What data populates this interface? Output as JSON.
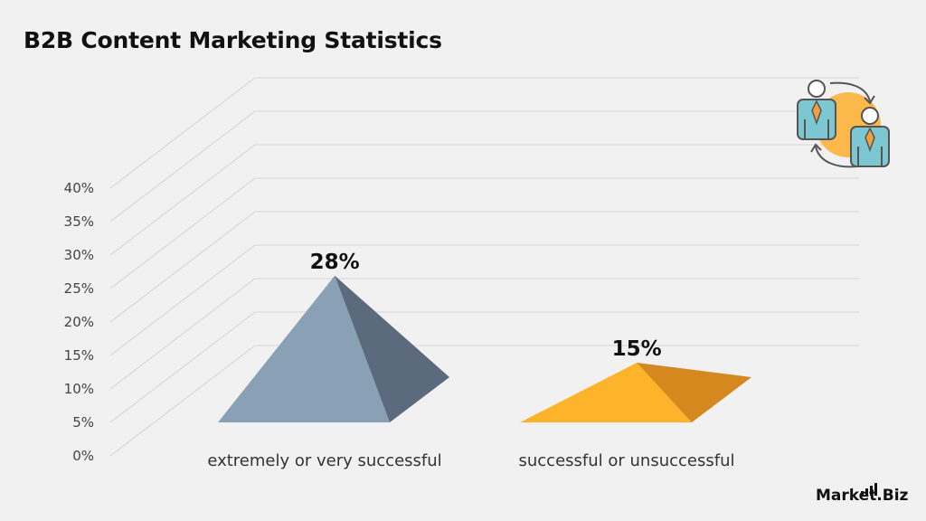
{
  "chart_data": {
    "type": "bar",
    "title": "B2B Content Marketing Statistics",
    "categories": [
      "extremely or very successful",
      "successful or unsuccessful"
    ],
    "values": [
      28,
      15
    ],
    "value_labels": [
      "28%",
      "15%"
    ],
    "ylim": [
      0,
      40
    ],
    "yticks": [
      "0%",
      "5%",
      "10%",
      "15%",
      "20%",
      "25%",
      "30%",
      "35%",
      "40%"
    ],
    "xlabel": "",
    "ylabel": "",
    "grid": true,
    "legend": "none",
    "colors": {
      "bar_front": [
        "#8aa0b4",
        "#fdb42a"
      ],
      "bar_side": [
        "#5b6a7c",
        "#d4881d"
      ]
    }
  },
  "branding": {
    "logo_text": "Market.Biz",
    "icon": "business-people-exchange-icon",
    "icon_colors": {
      "circle": "#fcb23a",
      "shirt": "#7cc7d2",
      "tie": "#f0a040"
    }
  }
}
